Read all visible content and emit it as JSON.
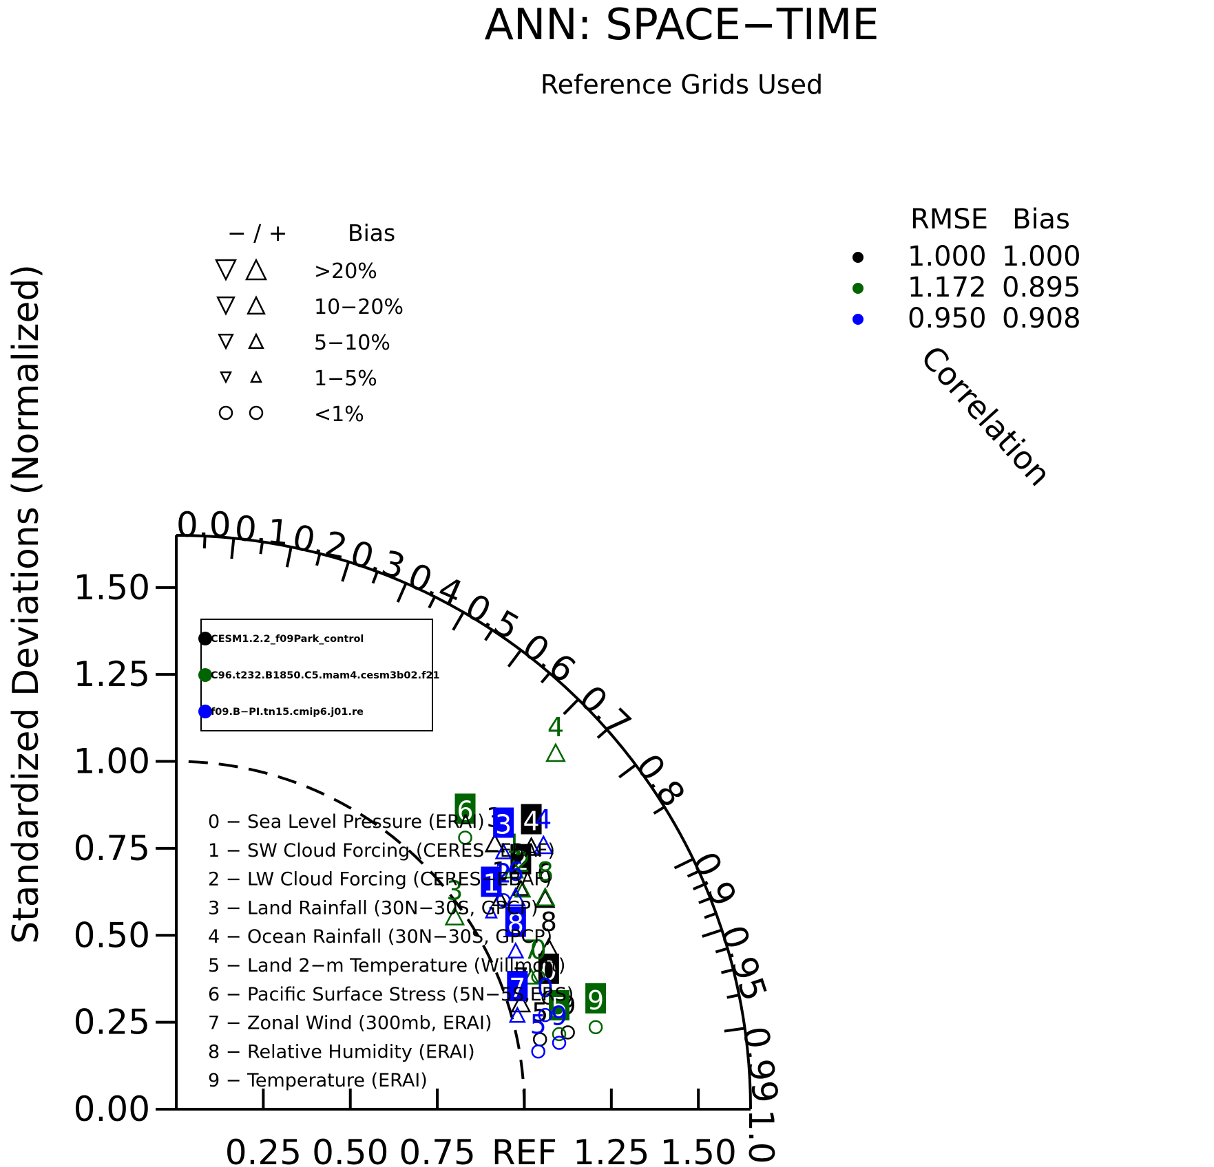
{
  "chart_data": {
    "type": "scatter",
    "subtype": "taylor-diagram",
    "title": "ANN: SPACE−TIME",
    "subtitle": "Reference Grids Used",
    "ylabel": "Standardized Deviations (Normalized)",
    "arc_label": "Correlation",
    "ref_label": "REF",
    "xlim": [
      0,
      1.65
    ],
    "ylim": [
      0,
      1.65
    ],
    "reference_std": 1.0,
    "y_ticks": [
      "0.00",
      "0.25",
      "0.50",
      "0.75",
      "1.00",
      "1.25",
      "1.50"
    ],
    "x_ticks": [
      "0.25",
      "0.50",
      "0.75",
      "REF",
      "1.25",
      "1.50"
    ],
    "x_tick_values": [
      0.25,
      0.5,
      0.75,
      1.0,
      1.25,
      1.5
    ],
    "correlation_labels": [
      {
        "r": 0.0,
        "text": "0.0"
      },
      {
        "r": 0.1,
        "text": "0.1"
      },
      {
        "r": 0.2,
        "text": "0.2"
      },
      {
        "r": 0.3,
        "text": "0.3"
      },
      {
        "r": 0.4,
        "text": "0.4"
      },
      {
        "r": 0.5,
        "text": "0.5"
      },
      {
        "r": 0.6,
        "text": "0.6"
      },
      {
        "r": 0.7,
        "text": "0.7"
      },
      {
        "r": 0.8,
        "text": "0.8"
      },
      {
        "r": 0.9,
        "text": "0.9"
      },
      {
        "r": 0.95,
        "text": "0.95"
      },
      {
        "r": 0.99,
        "text": "0.99"
      },
      {
        "r": 1.0,
        "text": "1.0"
      }
    ],
    "correlation_ticks": [
      0.0,
      0.1,
      0.2,
      0.3,
      0.4,
      0.5,
      0.6,
      0.7,
      0.8,
      0.9,
      0.95,
      0.99,
      1.0
    ],
    "correlation_minor_ticks": [
      0.05,
      0.15,
      0.25,
      0.35,
      0.45,
      0.55,
      0.65,
      0.75,
      0.85,
      0.91,
      0.92,
      0.93,
      0.94,
      0.96,
      0.97,
      0.98
    ],
    "bias_legend": {
      "header_signs": "− / +",
      "header_bias": "Bias",
      "rows": [
        {
          "label": ">20%",
          "marker": "triangle",
          "size": 1.0
        },
        {
          "label": "10−20%",
          "marker": "triangle",
          "size": 0.85
        },
        {
          "label": "5−10%",
          "marker": "triangle",
          "size": 0.7
        },
        {
          "label": "1−5%",
          "marker": "triangle",
          "size": 0.5
        },
        {
          "label": "<1%",
          "marker": "circle",
          "size": 0.75
        }
      ]
    },
    "stats_legend": {
      "header_rmse": "RMSE",
      "header_bias": "Bias",
      "rows": [
        {
          "color": "#000000",
          "rmse": "1.000",
          "bias": "1.000"
        },
        {
          "color": "#006400",
          "rmse": "1.172",
          "bias": "0.895"
        },
        {
          "color": "#0000ff",
          "rmse": "0.950",
          "bias": "0.908"
        }
      ]
    },
    "case_legend": [
      {
        "name": "CESM1.2.2_f09Park_control",
        "color": "#000000"
      },
      {
        "name": "C96.t232.B1850.C5.mam4.cesm3b02.f21",
        "color": "#006400"
      },
      {
        "name": "f09.B−PI.tn15.cmip6.j01.re",
        "color": "#0000ff"
      }
    ],
    "variables": [
      "0 − Sea Level Pressure (ERAI)",
      "1 − SW Cloud Forcing (CERES−EBAF)",
      "2 − LW Cloud Forcing (CERES−EBAF)",
      "3 − Land Rainfall (30N−30S, GPCP)",
      "4 − Ocean Rainfall (30N−30S, GPCP)",
      "5 − Land 2−m Temperature (Willmott)",
      "6 − Pacific Surface Stress (5N−5S,ERS)",
      "7 − Zonal Wind (300mb, ERAI)",
      "8 − Relative Humidity (ERAI)",
      "9 − Temperature (ERAI)"
    ],
    "series": [
      {
        "color": "#000000",
        "points": [
          {
            "id": "0",
            "x": 1.07,
            "y": 0.305,
            "marker": "circle",
            "boxed": true
          },
          {
            "id": "1",
            "x": 0.93,
            "y": 0.59,
            "marker": "triangle",
            "size": 0.7,
            "boxed": false
          },
          {
            "id": "2",
            "x": 0.99,
            "y": 0.62,
            "marker": "triangle",
            "size": 0.7,
            "boxed": true
          },
          {
            "id": "3",
            "x": 0.915,
            "y": 0.745,
            "marker": "triangle",
            "size": 0.85,
            "boxed": false
          },
          {
            "id": "4",
            "x": 1.02,
            "y": 0.735,
            "marker": "triangle",
            "size": 0.85,
            "boxed": true
          },
          {
            "id": "5",
            "x": 1.045,
            "y": 0.185,
            "marker": "circle",
            "boxed": false
          },
          {
            "id": "6",
            "x": 1.06,
            "y": 0.585,
            "marker": "triangle",
            "size": 0.85,
            "boxed": false
          },
          {
            "id": "7",
            "x": 0.99,
            "y": 0.285,
            "marker": "triangle",
            "size": 0.85,
            "boxed": false
          },
          {
            "id": "8",
            "x": 1.07,
            "y": 0.445,
            "marker": "triangle",
            "size": 0.85,
            "boxed": false
          },
          {
            "id": "9",
            "x": 1.125,
            "y": 0.205,
            "marker": "circle",
            "boxed": false
          }
        ]
      },
      {
        "color": "#006400",
        "points": [
          {
            "id": "0",
            "x": 1.04,
            "y": 0.365,
            "marker": "circle",
            "boxed": false
          },
          {
            "id": "1",
            "x": 0.97,
            "y": 0.67,
            "marker": "triangle",
            "size": 0.85,
            "boxed": false
          },
          {
            "id": "2",
            "x": 0.995,
            "y": 0.615,
            "marker": "triangle",
            "size": 0.7,
            "boxed": false
          },
          {
            "id": "3",
            "x": 0.8,
            "y": 0.535,
            "marker": "triangle",
            "size": 0.85,
            "boxed": false
          },
          {
            "id": "4",
            "x": 1.09,
            "y": 1.005,
            "marker": "triangle",
            "size": 0.85,
            "boxed": false
          },
          {
            "id": "5",
            "x": 1.1,
            "y": 0.2,
            "marker": "circle",
            "boxed": true
          },
          {
            "id": "6",
            "x": 0.83,
            "y": 0.765,
            "marker": "circle",
            "boxed": true
          },
          {
            "id": "7",
            "x": 1.02,
            "y": 0.365,
            "marker": "triangle",
            "size": 0.7,
            "boxed": false
          },
          {
            "id": "8",
            "x": 1.06,
            "y": 0.59,
            "marker": "triangle",
            "size": 0.85,
            "boxed": false
          },
          {
            "id": "9",
            "x": 1.205,
            "y": 0.22,
            "marker": "circle",
            "boxed": true
          }
        ]
      },
      {
        "color": "#0000ff",
        "points": [
          {
            "id": "0",
            "x": 1.06,
            "y": 0.255,
            "marker": "circle",
            "boxed": false
          },
          {
            "id": "1",
            "x": 0.905,
            "y": 0.555,
            "marker": "triangle",
            "size": 0.5,
            "boxed": true
          },
          {
            "id": "2",
            "x": 0.94,
            "y": 0.585,
            "marker": "circle",
            "boxed": false
          },
          {
            "id": "3",
            "x": 0.94,
            "y": 0.725,
            "marker": "triangle",
            "size": 0.7,
            "boxed": true
          },
          {
            "id": "4",
            "x": 1.055,
            "y": 0.74,
            "marker": "triangle",
            "size": 0.85,
            "boxed": false
          },
          {
            "id": "5",
            "x": 1.04,
            "y": 0.15,
            "marker": "circle",
            "boxed": false
          },
          {
            "id": "6",
            "x": 0.975,
            "y": 0.59,
            "marker": "triangle",
            "size": 0.85,
            "boxed": false
          },
          {
            "id": "7",
            "x": 0.98,
            "y": 0.255,
            "marker": "triangle",
            "size": 0.7,
            "boxed": true
          },
          {
            "id": "8",
            "x": 0.975,
            "y": 0.44,
            "marker": "triangle",
            "size": 0.7,
            "boxed": true
          },
          {
            "id": "9",
            "x": 1.1,
            "y": 0.175,
            "marker": "circle",
            "boxed": false
          }
        ]
      }
    ]
  }
}
